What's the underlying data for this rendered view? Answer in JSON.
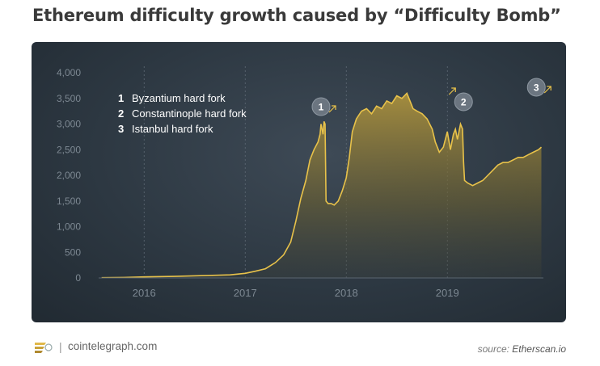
{
  "title": "Ethereum difficulty growth caused by “Difficulty Bomb”",
  "legend": [
    {
      "num": "1",
      "label": "Byzantium hard fork"
    },
    {
      "num": "2",
      "label": "Constantinople hard fork"
    },
    {
      "num": "3",
      "label": "Istanbul hard fork"
    }
  ],
  "markers": [
    {
      "num": "1",
      "date": "2017.79"
    },
    {
      "num": "2",
      "date": "2019.16"
    },
    {
      "num": "3",
      "date": "2019.92"
    }
  ],
  "footer": {
    "site": "cointelegraph.com",
    "source_prefix": "source:",
    "source_name": "Etherscan.io"
  },
  "colors": {
    "line": "#e8c24a",
    "panel": "#2d3842",
    "badge": "#6b7580"
  },
  "chart_data": {
    "type": "area",
    "xlabel": "",
    "ylabel": "",
    "xlim": [
      2015.55,
      2019.95
    ],
    "ylim": [
      0,
      4000
    ],
    "yticks": [
      "0",
      "500",
      "1,000",
      "1,500",
      "2,000",
      "2,500",
      "3,000",
      "3,500",
      "4,000"
    ],
    "yticks_values": [
      0,
      500,
      1000,
      1500,
      2000,
      2500,
      3000,
      3500,
      4000
    ],
    "xticks": [
      "2016",
      "2017",
      "2018",
      "2019"
    ],
    "xticks_values": [
      2016,
      2017,
      2018,
      2019
    ],
    "grid": "vertical dashed",
    "series": [
      {
        "x": [
          2015.58,
          2015.8,
          2016.0,
          2016.3,
          2016.6,
          2016.85,
          2016.95,
          2017.0,
          2017.1,
          2017.2,
          2017.3,
          2017.38,
          2017.45,
          2017.5,
          2017.55,
          2017.6,
          2017.64,
          2017.68,
          2017.72,
          2017.74,
          2017.75,
          2017.77,
          2017.78,
          2017.79,
          2017.8,
          2017.82,
          2017.85,
          2017.88,
          2017.92,
          2017.96,
          2018.0,
          2018.03,
          2018.06,
          2018.1,
          2018.15,
          2018.2,
          2018.25,
          2018.3,
          2018.35,
          2018.4,
          2018.45,
          2018.5,
          2018.55,
          2018.6,
          2018.63,
          2018.66,
          2018.7,
          2018.75,
          2018.8,
          2018.85,
          2018.88,
          2018.92,
          2018.96,
          2019.0,
          2019.03,
          2019.06,
          2019.08,
          2019.1,
          2019.13,
          2019.15,
          2019.16,
          2019.17,
          2019.2,
          2019.25,
          2019.3,
          2019.35,
          2019.4,
          2019.45,
          2019.5,
          2019.55,
          2019.6,
          2019.65,
          2019.7,
          2019.75,
          2019.8,
          2019.85,
          2019.9,
          2019.93
        ],
        "y": [
          5,
          10,
          20,
          30,
          45,
          60,
          80,
          90,
          130,
          180,
          300,
          450,
          700,
          1100,
          1550,
          1900,
          2300,
          2500,
          2650,
          2800,
          3000,
          2800,
          3050,
          3000,
          1500,
          1450,
          1450,
          1420,
          1500,
          1700,
          1950,
          2350,
          2850,
          3100,
          3250,
          3300,
          3200,
          3350,
          3300,
          3450,
          3400,
          3550,
          3500,
          3600,
          3450,
          3300,
          3250,
          3200,
          3100,
          2900,
          2650,
          2450,
          2550,
          2850,
          2500,
          2800,
          2900,
          2700,
          3000,
          2900,
          2250,
          1900,
          1850,
          1800,
          1850,
          1900,
          2000,
          2100,
          2200,
          2250,
          2250,
          2300,
          2350,
          2350,
          2400,
          2450,
          2500,
          2550
        ]
      }
    ]
  }
}
